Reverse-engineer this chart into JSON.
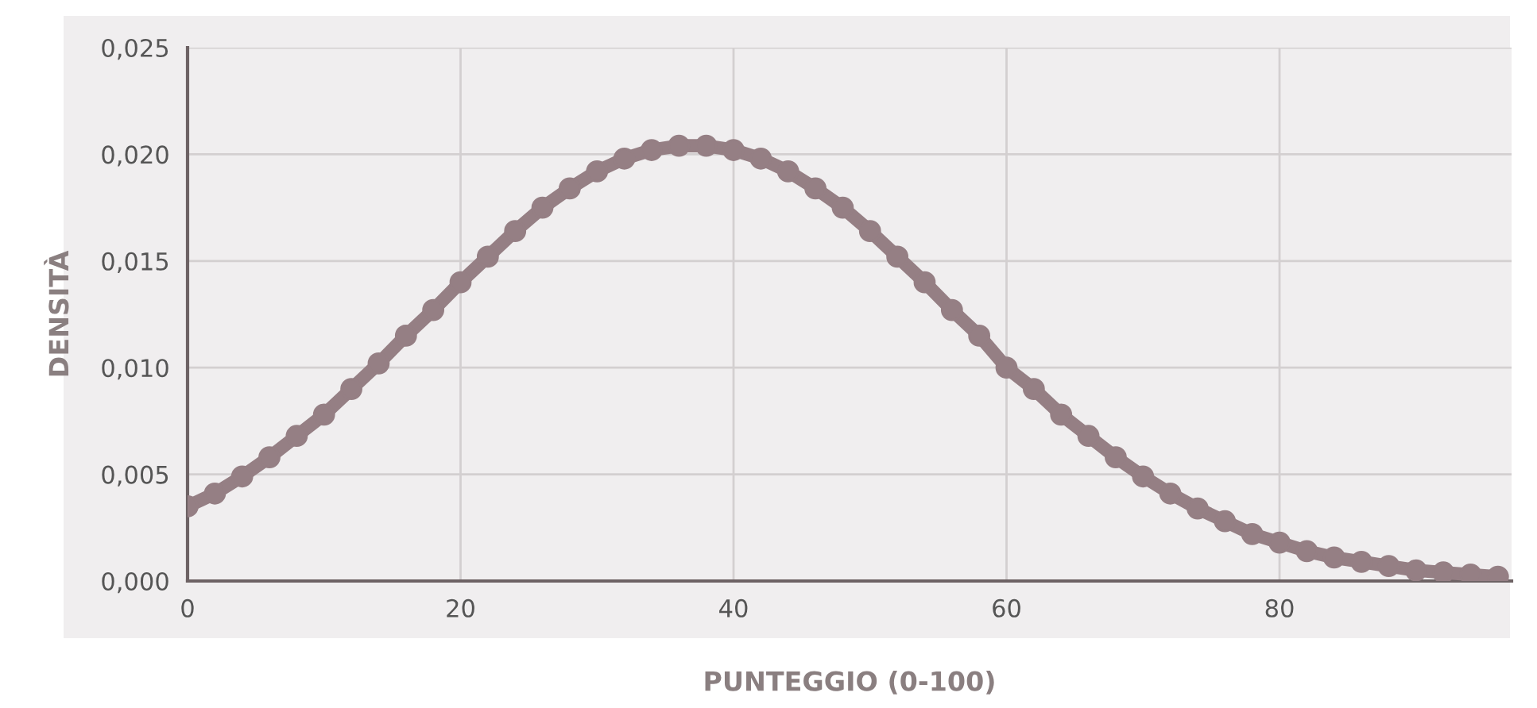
{
  "chart_data": {
    "type": "line",
    "xlabel": "PUNTEGGIO (0-100)",
    "ylabel": "DENSITÀ",
    "x": [
      0,
      2,
      4,
      6,
      8,
      10,
      12,
      14,
      16,
      18,
      20,
      22,
      24,
      26,
      28,
      30,
      32,
      34,
      36,
      38,
      40,
      42,
      44,
      46,
      48,
      50,
      52,
      54,
      56,
      58,
      60,
      62,
      64,
      66,
      68,
      70,
      72,
      74,
      76,
      78,
      80,
      82,
      84,
      86,
      88,
      90,
      92,
      94,
      96
    ],
    "series": [
      {
        "color": "#957f84",
        "values": [
          0.0035,
          0.0041,
          0.0049,
          0.0058,
          0.0068,
          0.0078,
          0.009,
          0.0102,
          0.0115,
          0.0127,
          0.014,
          0.0152,
          0.0164,
          0.0175,
          0.0184,
          0.0192,
          0.0198,
          0.0202,
          0.0204,
          0.0204,
          0.0202,
          0.0198,
          0.0192,
          0.0184,
          0.0175,
          0.0164,
          0.0152,
          0.014,
          0.0127,
          0.0115,
          0.01,
          0.009,
          0.0078,
          0.0068,
          0.0058,
          0.0049,
          0.0041,
          0.0034,
          0.0028,
          0.0022,
          0.0018,
          0.0014,
          0.0011,
          0.0009,
          0.0007,
          0.0005,
          0.0004,
          0.0003,
          0.0002
        ]
      }
    ],
    "xlim": [
      0,
      97
    ],
    "xticks": [
      0,
      20,
      40,
      60,
      80
    ],
    "ylim": [
      0,
      0.025
    ],
    "yticks": [
      {
        "value": 0,
        "label": "0,000"
      },
      {
        "value": 0.005,
        "label": "0,005"
      },
      {
        "value": 0.01,
        "label": "0,010"
      },
      {
        "value": 0.015,
        "label": "0,015"
      },
      {
        "value": 0.02,
        "label": "0,020"
      },
      {
        "value": 0.025,
        "label": "0,025"
      }
    ],
    "grid": true,
    "marker": "circle",
    "line_style": "solid",
    "legend": false
  }
}
